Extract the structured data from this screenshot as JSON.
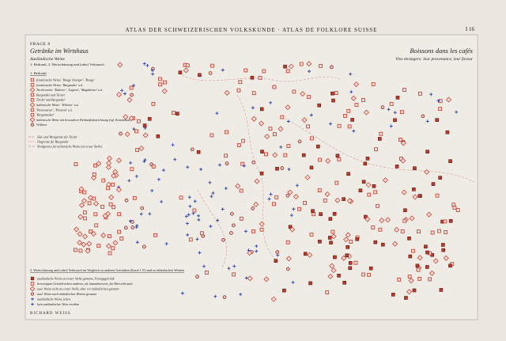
{
  "header": {
    "atlas": "ATLAS DER SCHWEIZERISCHEN VOLKSKUNDE · ATLAS DE FOLKLORE SUISSE",
    "map_number": "I 16"
  },
  "title_de": {
    "question": "FRAGE 8",
    "title": "Getränke im Wirtshaus",
    "subtitle": "Ausländische Weine",
    "note": "1. Herkunft, 2. Wertschätzung und (oder) Verbrauch"
  },
  "title_fr": {
    "title": "Boissons dans les cafés",
    "subtitle": "Vins étrangers: leur provenance, leur faveur"
  },
  "legend_origin": {
    "heading": "1. Herkunft",
    "items": [
      "französische Weine: 'Rouge étranger', 'Rouge'",
      "französische Weine: 'Burgunder' u.ä.",
      "Tirolerweine: 'Kalterer', 'Lagrein', 'Magdalener' u.ä.",
      "Burgunder und Tiroler",
      "Tiroler und Burgunder",
      "italienische Weine: 'Veltliner' u.ä.",
      "'Piemonteser', 'Piemont' u.ä.",
      "'Bergamasker'",
      "italienische Weine mit besonderer Herkunftsbezeichnung (vgl. Kommentar)",
      "Veltliner"
    ],
    "lines": [
      "Süd- und Westgrenze für Tiroler",
      "Ostgrenze für Burgunder",
      "Nordgrenze für italienische Weine (an erster Stelle)"
    ]
  },
  "legend_esteem": {
    "heading": "2. Wertschätzung und (oder) Verbrauch im Vergleich zu anderen Getränken (Karte I 15) und zu inländischen Weinen",
    "items": [
      "ausländische Weine an erster Stelle genannt, Vorzugsgetränk",
      "bevorzugtes Getränk neben anderen, als Ausnahmewein, für Bierverbrauch",
      "ausl. Weine nicht an erster Stelle, aber vor inländischen genannt",
      "ausl. Weine nach inländischen Weinen genannt",
      "ausländische Weine selten",
      "kein ausländischer Wein erwähnt"
    ]
  },
  "author": "RICHARD WEISS"
}
